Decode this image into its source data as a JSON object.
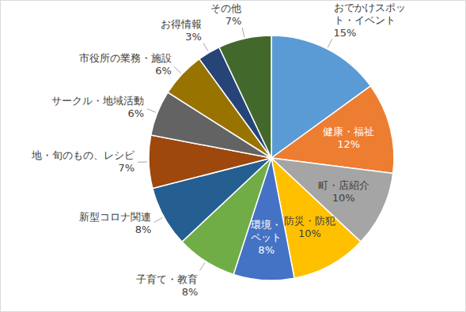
{
  "chart_data": {
    "type": "pie",
    "categories": [
      "おでかけスポット・イベント",
      "健康・福祉",
      "町・店紹介",
      "防災・防犯",
      "環境・ペット",
      "子育て・教育",
      "新型コロナ関連",
      "地・旬のもの、レシピ",
      "サークル・地域活動",
      "市役所の業務・施設",
      "お得情報",
      "その他"
    ],
    "values": [
      15,
      12,
      10,
      10,
      8,
      8,
      8,
      7,
      6,
      6,
      3,
      7
    ],
    "value_labels": [
      "15%",
      "12%",
      "10%",
      "10%",
      "8%",
      "8%",
      "8%",
      "7%",
      "6%",
      "6%",
      "3%",
      "7%"
    ],
    "colors": [
      "#5b9bd5",
      "#ed7d31",
      "#a5a5a5",
      "#ffc000",
      "#4472c4",
      "#70ad47",
      "#255e91",
      "#9e480e",
      "#636363",
      "#997300",
      "#264478",
      "#43682b"
    ],
    "data_labels": true
  }
}
